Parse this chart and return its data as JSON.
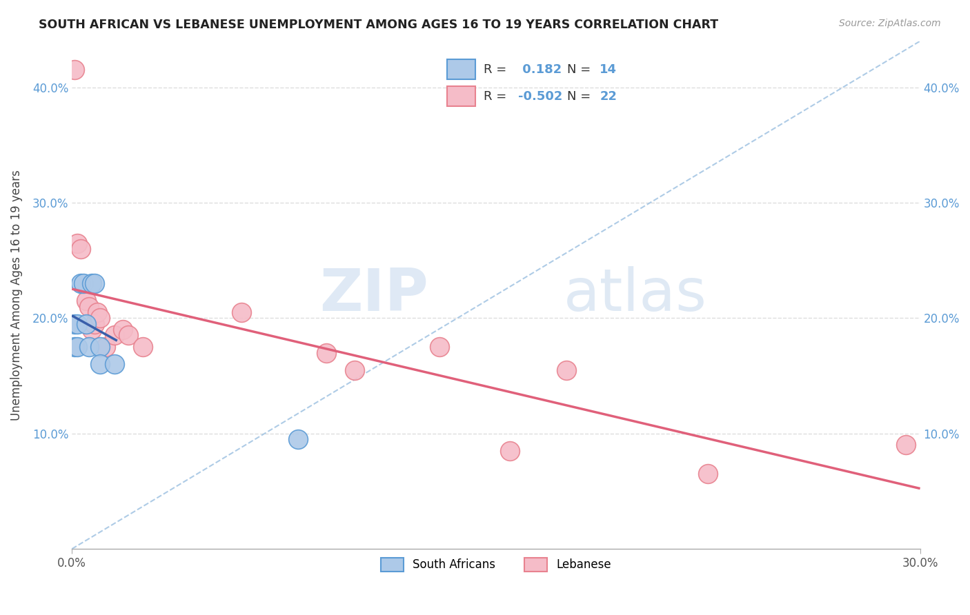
{
  "title": "SOUTH AFRICAN VS LEBANESE UNEMPLOYMENT AMONG AGES 16 TO 19 YEARS CORRELATION CHART",
  "source": "Source: ZipAtlas.com",
  "ylabel": "Unemployment Among Ages 16 to 19 years",
  "xlim": [
    0.0,
    0.3
  ],
  "ylim": [
    0.0,
    0.44
  ],
  "xticks": [
    0.0,
    0.3
  ],
  "xtick_labels": [
    "0.0%",
    "30.0%"
  ],
  "yticks_left": [
    0.1,
    0.2,
    0.3,
    0.4
  ],
  "ytick_labels_left": [
    "10.0%",
    "20.0%",
    "30.0%",
    "40.0%"
  ],
  "ytick_labels_right": [
    "10.0%",
    "20.0%",
    "30.0%",
    "40.0%"
  ],
  "sa_R": 0.182,
  "sa_N": 14,
  "leb_R": -0.502,
  "leb_N": 22,
  "south_african_x": [
    0.001,
    0.001,
    0.002,
    0.002,
    0.003,
    0.004,
    0.005,
    0.006,
    0.007,
    0.008,
    0.01,
    0.01,
    0.015,
    0.08
  ],
  "south_african_y": [
    0.195,
    0.175,
    0.195,
    0.175,
    0.23,
    0.23,
    0.195,
    0.175,
    0.23,
    0.23,
    0.175,
    0.16,
    0.16,
    0.095
  ],
  "lebanese_x": [
    0.001,
    0.002,
    0.003,
    0.005,
    0.006,
    0.007,
    0.008,
    0.009,
    0.01,
    0.012,
    0.015,
    0.018,
    0.02,
    0.025,
    0.06,
    0.09,
    0.1,
    0.13,
    0.155,
    0.175,
    0.225,
    0.295
  ],
  "lebanese_y": [
    0.415,
    0.265,
    0.26,
    0.215,
    0.21,
    0.19,
    0.195,
    0.205,
    0.2,
    0.175,
    0.185,
    0.19,
    0.185,
    0.175,
    0.205,
    0.17,
    0.155,
    0.175,
    0.085,
    0.155,
    0.065,
    0.09
  ],
  "sa_color": "#adc9e8",
  "sa_edge_color": "#5b9bd5",
  "leb_color": "#f5bcc8",
  "leb_edge_color": "#e8828f",
  "sa_line_color": "#3a5faa",
  "leb_line_color": "#e0607a",
  "diag_line_color": "#9abfe0",
  "legend_label_sa": "South Africans",
  "legend_label_leb": "Lebanese",
  "watermark_zip": "ZIP",
  "watermark_atlas": "atlas",
  "background_color": "#ffffff",
  "grid_color": "#dddddd"
}
